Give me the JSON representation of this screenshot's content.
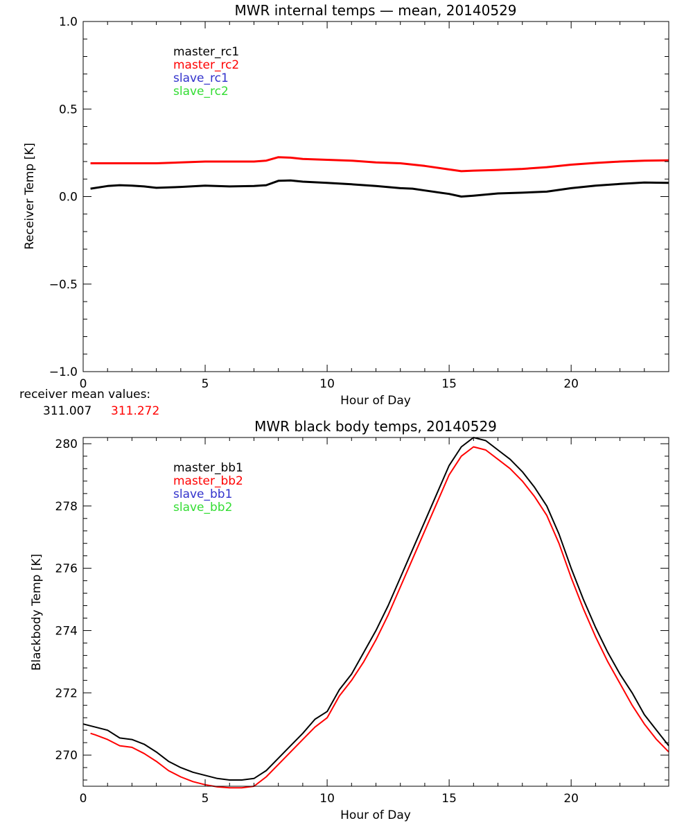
{
  "colors": {
    "series1": "#000000",
    "series2": "#ff0000",
    "series3": "#3232cc",
    "series4": "#33dd33",
    "axes": "#000000",
    "background": "#ffffff"
  },
  "chart_data": [
    {
      "type": "line",
      "title": "MWR internal temps — mean, 20140529",
      "xlabel": "Hour of Day",
      "ylabel": "Receiver Temp [K]",
      "xlim": [
        0,
        24
      ],
      "ylim": [
        -1.0,
        1.0
      ],
      "xticks": [
        0,
        5,
        10,
        15,
        20
      ],
      "xtick_labels": [
        "0",
        "5",
        "10",
        "15",
        "20"
      ],
      "yticks": [
        -1.0,
        -0.5,
        0.0,
        0.5,
        1.0
      ],
      "ytick_labels": [
        "−1.0",
        "−0.5",
        "0.0",
        "0.5",
        "1.0"
      ],
      "legend": [
        "master_rc1",
        "master_rc2",
        "slave_rc1",
        "slave_rc2"
      ],
      "legend_position": "top-left",
      "grid": false,
      "series": [
        {
          "name": "master_rc1",
          "color": "#000000",
          "x": [
            0.3,
            1.0,
            1.5,
            2.0,
            2.5,
            3.0,
            4.0,
            5.0,
            6.0,
            7.0,
            7.5,
            8.0,
            8.5,
            9.0,
            10.0,
            11.0,
            12.0,
            13.0,
            13.5,
            14.0,
            15.0,
            15.5,
            16.0,
            17.0,
            18.0,
            19.0,
            20.0,
            21.0,
            22.0,
            23.0,
            24.0
          ],
          "values": [
            0.045,
            0.06,
            0.065,
            0.062,
            0.058,
            0.05,
            0.055,
            0.062,
            0.058,
            0.06,
            0.065,
            0.09,
            0.092,
            0.085,
            0.078,
            0.07,
            0.06,
            0.048,
            0.045,
            0.035,
            0.015,
            0.0,
            0.005,
            0.018,
            0.022,
            0.028,
            0.048,
            0.062,
            0.072,
            0.08,
            0.078
          ]
        },
        {
          "name": "master_rc2",
          "color": "#ff0000",
          "x": [
            0.3,
            1.0,
            2.0,
            3.0,
            4.0,
            5.0,
            6.0,
            7.0,
            7.5,
            8.0,
            8.5,
            9.0,
            10.0,
            11.0,
            12.0,
            13.0,
            14.0,
            15.0,
            15.5,
            16.0,
            17.0,
            18.0,
            19.0,
            20.0,
            21.0,
            22.0,
            23.0,
            24.0
          ],
          "values": [
            0.19,
            0.19,
            0.19,
            0.19,
            0.195,
            0.2,
            0.2,
            0.2,
            0.205,
            0.225,
            0.222,
            0.215,
            0.21,
            0.205,
            0.195,
            0.19,
            0.175,
            0.155,
            0.145,
            0.148,
            0.152,
            0.158,
            0.168,
            0.182,
            0.192,
            0.2,
            0.205,
            0.207
          ]
        }
      ],
      "annotation": {
        "label": "receiver mean values:",
        "values": [
          {
            "text": "311.007",
            "color": "#000000"
          },
          {
            "text": "311.272",
            "color": "#ff0000"
          }
        ]
      }
    },
    {
      "type": "line",
      "title": "MWR black body temps, 20140529",
      "xlabel": "Hour of Day",
      "ylabel": "Blackbody Temp [K]",
      "xlim": [
        0,
        24
      ],
      "ylim": [
        269.0,
        280.2
      ],
      "xticks": [
        0,
        5,
        10,
        15,
        20
      ],
      "xtick_labels": [
        "0",
        "5",
        "10",
        "15",
        "20"
      ],
      "yticks": [
        270,
        272,
        274,
        276,
        278,
        280
      ],
      "ytick_labels": [
        "270",
        "272",
        "274",
        "276",
        "278",
        "280"
      ],
      "legend": [
        "master_bb1",
        "master_bb2",
        "slave_bb1",
        "slave_bb2"
      ],
      "legend_position": "top-left",
      "grid": false,
      "series": [
        {
          "name": "master_bb1",
          "color": "#000000",
          "x": [
            0.0,
            0.5,
            1.0,
            1.5,
            2.0,
            2.5,
            3.0,
            3.5,
            4.0,
            4.5,
            5.0,
            5.5,
            6.0,
            6.5,
            7.0,
            7.5,
            8.0,
            8.5,
            9.0,
            9.5,
            10.0,
            10.5,
            11.0,
            11.5,
            12.0,
            12.5,
            13.0,
            13.5,
            14.0,
            14.5,
            15.0,
            15.5,
            16.0,
            16.5,
            17.0,
            17.5,
            18.0,
            18.5,
            19.0,
            19.5,
            20.0,
            20.5,
            21.0,
            21.5,
            22.0,
            22.5,
            23.0,
            23.5,
            24.0
          ],
          "values": [
            271.0,
            270.9,
            270.8,
            270.55,
            270.5,
            270.35,
            270.1,
            269.8,
            269.6,
            269.45,
            269.35,
            269.25,
            269.2,
            269.2,
            269.25,
            269.5,
            269.9,
            270.3,
            270.7,
            271.15,
            271.4,
            272.1,
            272.6,
            273.3,
            274.0,
            274.8,
            275.7,
            276.6,
            277.5,
            278.4,
            279.3,
            279.9,
            280.2,
            280.1,
            279.8,
            279.5,
            279.1,
            278.6,
            278.0,
            277.1,
            276.0,
            275.0,
            274.1,
            273.3,
            272.6,
            272.0,
            271.3,
            270.8,
            270.3
          ]
        },
        {
          "name": "master_bb2",
          "color": "#ff0000",
          "x": [
            0.3,
            0.5,
            1.0,
            1.5,
            2.0,
            2.5,
            3.0,
            3.5,
            4.0,
            4.5,
            5.0,
            5.5,
            6.0,
            6.5,
            7.0,
            7.5,
            8.0,
            8.5,
            9.0,
            9.5,
            10.0,
            10.5,
            11.0,
            11.5,
            12.0,
            12.5,
            13.0,
            13.5,
            14.0,
            14.5,
            15.0,
            15.5,
            16.0,
            16.5,
            17.0,
            17.5,
            18.0,
            18.5,
            19.0,
            19.5,
            20.0,
            20.5,
            21.0,
            21.5,
            22.0,
            22.5,
            23.0,
            23.5,
            24.0
          ],
          "values": [
            270.7,
            270.65,
            270.5,
            270.3,
            270.25,
            270.05,
            269.8,
            269.5,
            269.3,
            269.15,
            269.05,
            268.98,
            268.95,
            268.95,
            269.0,
            269.3,
            269.7,
            270.1,
            270.5,
            270.9,
            271.2,
            271.9,
            272.4,
            273.0,
            273.7,
            274.5,
            275.4,
            276.3,
            277.2,
            278.1,
            279.0,
            279.6,
            279.9,
            279.8,
            279.5,
            279.2,
            278.8,
            278.3,
            277.7,
            276.8,
            275.7,
            274.7,
            273.8,
            273.0,
            272.3,
            271.6,
            271.0,
            270.5,
            270.1
          ]
        }
      ]
    }
  ]
}
